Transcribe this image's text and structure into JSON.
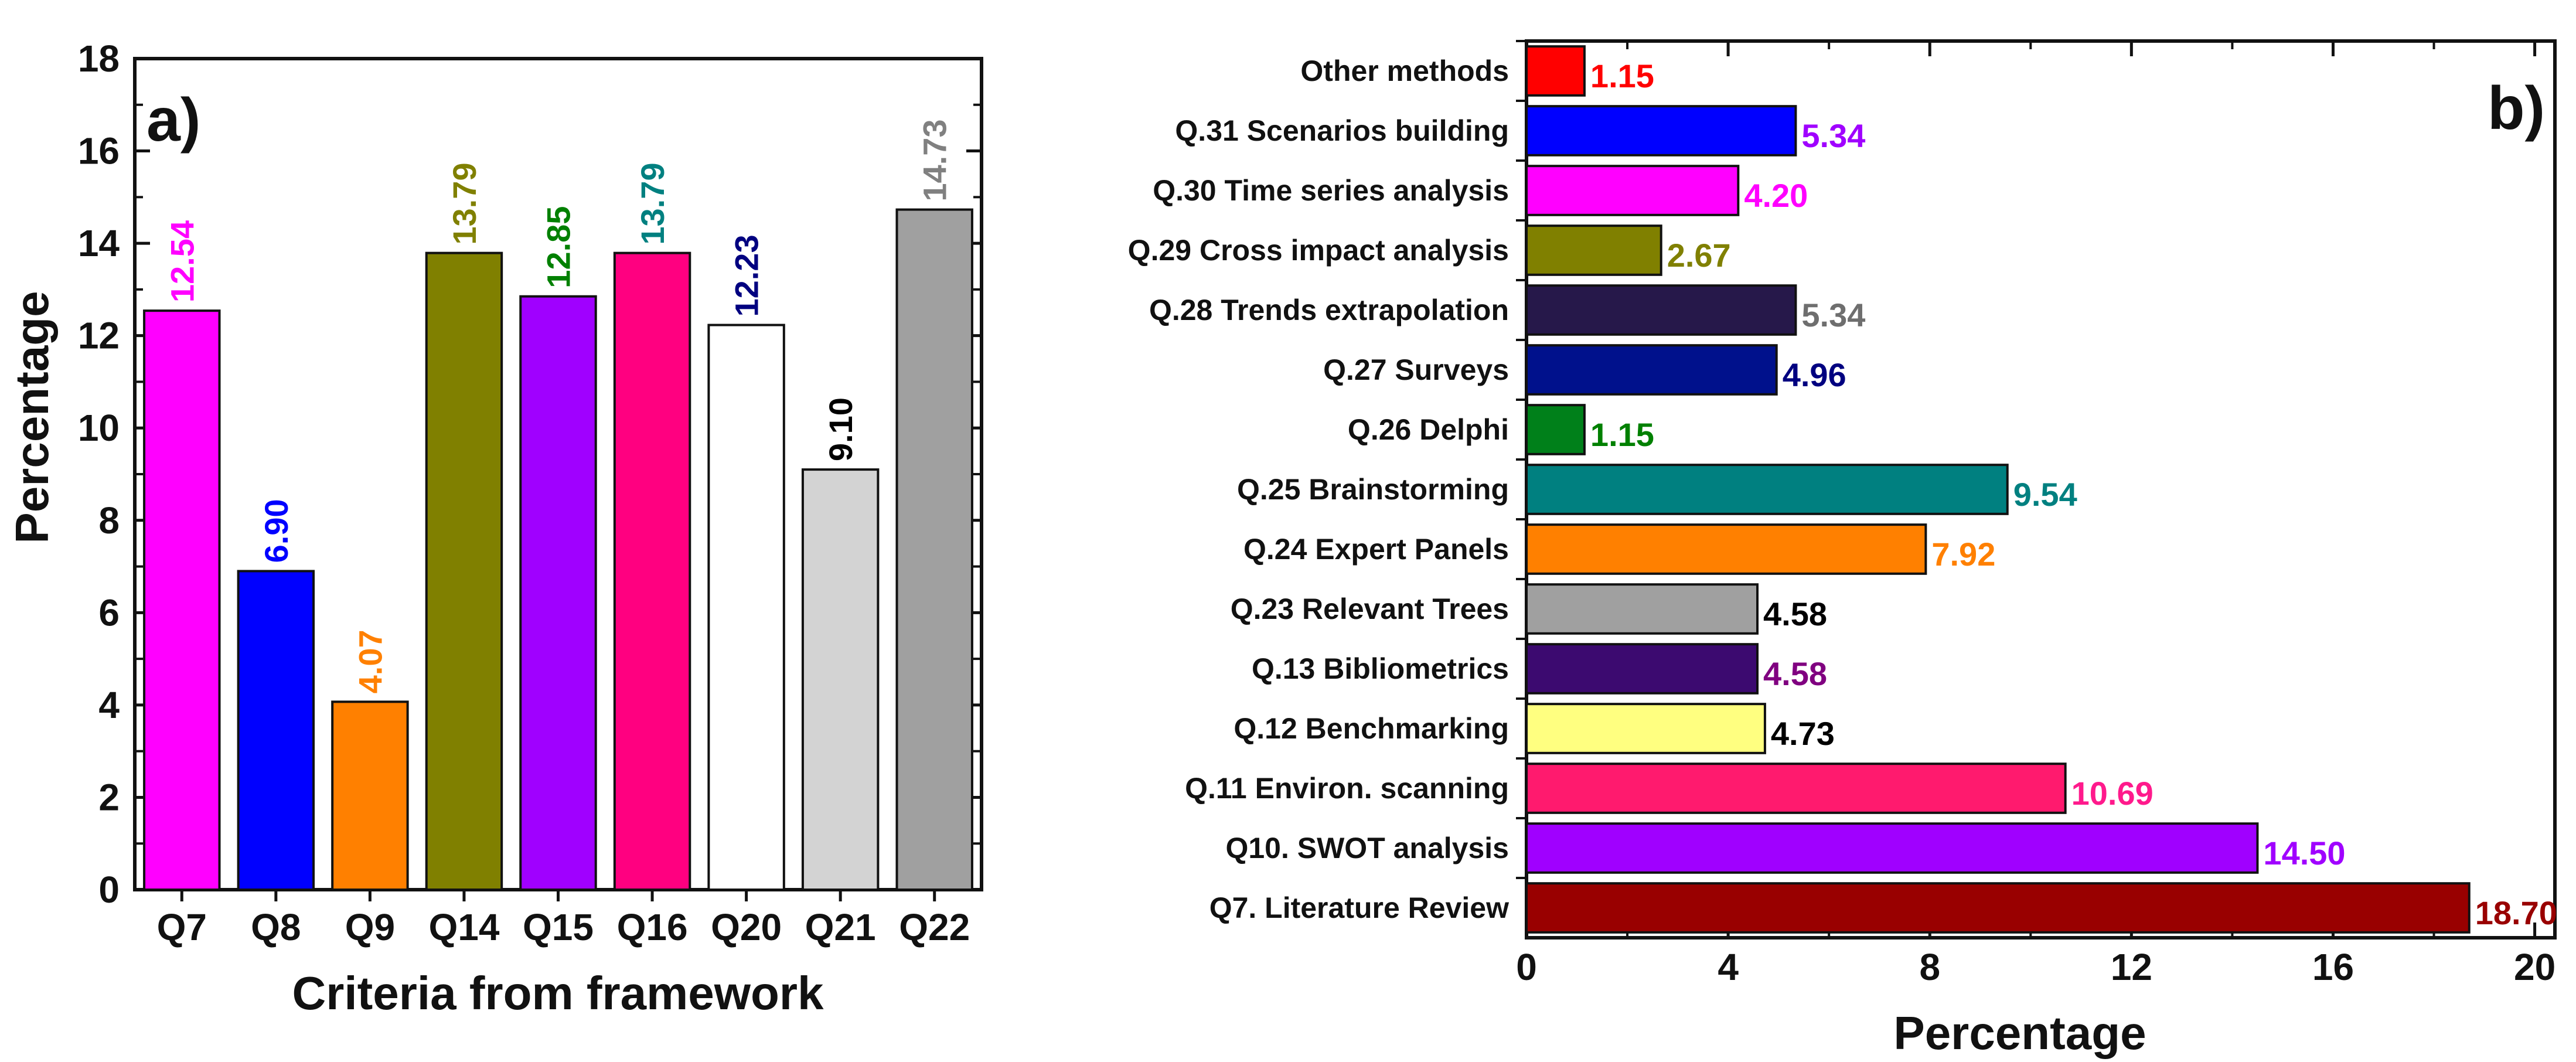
{
  "chart_data": [
    {
      "type": "bar",
      "panel_label": "a)",
      "xlabel": "Criteria from framework",
      "ylabel": "Percentage",
      "ylim": [
        0,
        18
      ],
      "yticks": [
        0,
        2,
        4,
        6,
        8,
        10,
        12,
        14,
        16,
        18
      ],
      "categories": [
        "Q7",
        "Q8",
        "Q9",
        "Q14",
        "Q15",
        "Q16",
        "Q20",
        "Q21",
        "Q22"
      ],
      "values": [
        12.54,
        6.9,
        4.07,
        13.79,
        12.85,
        13.79,
        12.23,
        9.1,
        14.73
      ],
      "value_labels": [
        "12.54",
        "6.90",
        "4.07",
        "13.79",
        "12.85",
        "13.79",
        "12.23",
        "9.10",
        "14.73"
      ],
      "bar_colors": [
        "#FF00FF",
        "#0000FF",
        "#FF8000",
        "#808000",
        "#A000FF",
        "#FF0080",
        "#FFFFFF",
        "#D3D3D3",
        "#A0A0A0"
      ],
      "label_colors": [
        "#FF00FF",
        "#0000FF",
        "#FF8000",
        "#808000",
        "#008000",
        "#008080",
        "#000080",
        "#000000",
        "#808080"
      ]
    },
    {
      "type": "barh",
      "panel_label": "b)",
      "xlabel": "Percentage",
      "xlim": [
        0,
        20.4
      ],
      "xticks": [
        0,
        4,
        8,
        12,
        16,
        20
      ],
      "categories": [
        "Other methods",
        "Q.31 Scenarios building",
        "Q.30 Time series analysis",
        "Q.29 Cross impact analysis",
        "Q.28 Trends extrapolation",
        "Q.27 Surveys",
        "Q.26 Delphi",
        "Q.25 Brainstorming",
        "Q.24 Expert Panels",
        "Q.23 Relevant Trees",
        "Q.13 Bibliometrics",
        "Q.12 Benchmarking",
        "Q.11 Environ. scanning",
        "Q10. SWOT analysis",
        "Q7. Literature Review"
      ],
      "values": [
        1.15,
        5.34,
        4.2,
        2.67,
        5.34,
        4.96,
        1.15,
        9.54,
        7.92,
        4.58,
        4.58,
        4.73,
        10.69,
        14.5,
        18.7
      ],
      "value_labels": [
        "1.15",
        "5.34",
        "4.20",
        "2.67",
        "5.34",
        "4.96",
        "1.15",
        "9.54",
        "7.92",
        "4.58",
        "4.58",
        "4.73",
        "10.69",
        "14.50",
        "18.70"
      ],
      "bar_colors": [
        "#FF0000",
        "#0000FF",
        "#FF00FF",
        "#808000",
        "#26184A",
        "#00118C",
        "#00801A",
        "#008080",
        "#FF8000",
        "#A0A0A0",
        "#3C0A70",
        "#FFFF80",
        "#FF1A6E",
        "#A000FF",
        "#990000"
      ],
      "label_colors": [
        "#FF0000",
        "#A000FF",
        "#FF00FF",
        "#808000",
        "#6E6E6E",
        "#000080",
        "#008000",
        "#008080",
        "#FF8000",
        "#000000",
        "#800080",
        "#000000",
        "#FF1A8C",
        "#A000FF",
        "#990000"
      ]
    }
  ]
}
